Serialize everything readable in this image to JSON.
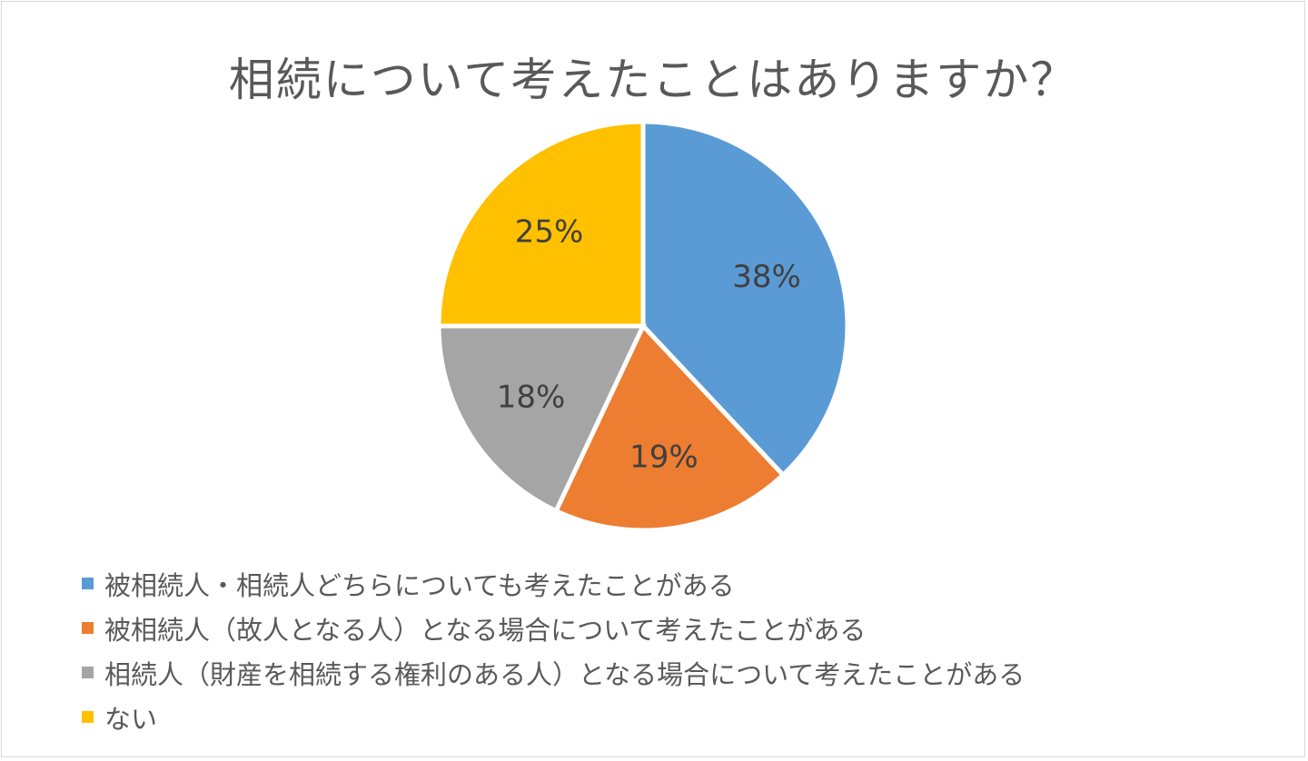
{
  "chart_data": {
    "type": "pie",
    "title": "相続について考えたことはありますか？",
    "slices": [
      {
        "label": "被相続人・相続人どちらについても考えたことがある",
        "value": 38,
        "data_label": "38%",
        "color": "#5b9bd5"
      },
      {
        "label": "被相続人（故人となる人）となる場合について考えたことがある",
        "value": 19,
        "data_label": "19%",
        "color": "#ed7d31"
      },
      {
        "label": "相続人（財産を相続する権利のある人）となる場合について考えたことがある",
        "value": 18,
        "data_label": "18%",
        "color": "#a5a5a5"
      },
      {
        "label": "ない",
        "value": 25,
        "data_label": "25%",
        "color": "#ffc000"
      }
    ],
    "legend_position": "bottom-left"
  }
}
